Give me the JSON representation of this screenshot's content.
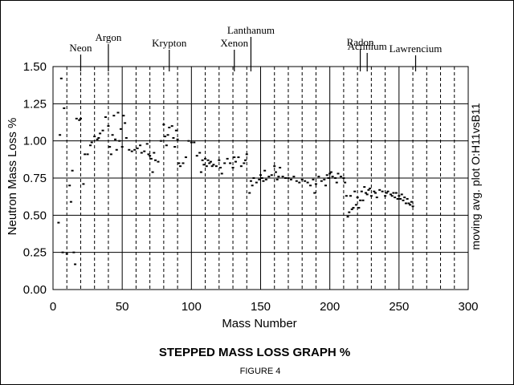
{
  "chart_data": {
    "type": "scatter",
    "title": "STEPPED MASS LOSS GRAPH  %",
    "caption": "FIGURE  4",
    "xlabel": "Mass Number",
    "ylabel": "Neutron Mass Loss %",
    "side_label": "moving avg. plot  O:H11vsB11",
    "xlim": [
      0,
      300
    ],
    "ylim": [
      0,
      1.5
    ],
    "xticks": [
      0,
      50,
      100,
      150,
      200,
      250,
      300
    ],
    "yticks": [
      0,
      0.25,
      0.5,
      0.75,
      1.0,
      1.25,
      1.5
    ],
    "xtick_labels": [
      "0",
      "50",
      "100",
      "150",
      "200",
      "250",
      "300"
    ],
    "ytick_labels": [
      "0.00",
      "0.25",
      "0.50",
      "0.75",
      "1.00",
      "1.25",
      "1.50"
    ],
    "grid": "horizontal solid at y ticks; vertical solid at x ticks; vertical dashed at every 10 mass units",
    "element_markers": [
      {
        "label": "Neon",
        "x": 20
      },
      {
        "label": "Argon",
        "x": 40
      },
      {
        "label": "Krypton",
        "x": 84
      },
      {
        "label": "Xenon",
        "x": 131
      },
      {
        "label": "Lanthanum",
        "x": 143
      },
      {
        "label": "Radon",
        "x": 222
      },
      {
        "label": "Actinium",
        "x": 227
      },
      {
        "label": "Lawrencium",
        "x": 262
      }
    ],
    "series": [
      {
        "points": [
          [
            4,
            0.45
          ],
          [
            5,
            1.04
          ],
          [
            6,
            1.42
          ],
          [
            7,
            0.25
          ],
          [
            8,
            1.22
          ],
          [
            10,
            0.24
          ],
          [
            12,
            0.7
          ],
          [
            13,
            0.59
          ],
          [
            14,
            0.8
          ],
          [
            15,
            0.25
          ],
          [
            16,
            0.17
          ],
          [
            17,
            1.15
          ],
          [
            19,
            1.14
          ],
          [
            20,
            1.15
          ],
          [
            22,
            0.71
          ],
          [
            23,
            0.91
          ],
          [
            25,
            0.91
          ],
          [
            27,
            0.97
          ],
          [
            28,
            0.99
          ],
          [
            30,
            1.03
          ],
          [
            32,
            1.01
          ],
          [
            33,
            1.02
          ],
          [
            34,
            1.05
          ],
          [
            36,
            1.07
          ],
          [
            38,
            1.16
          ],
          [
            40,
            1.1
          ],
          [
            41,
            0.96
          ],
          [
            42,
            0.91
          ],
          [
            43,
            1.04
          ],
          [
            44,
            1.17
          ],
          [
            45,
            1.01
          ],
          [
            46,
            0.94
          ],
          [
            47,
            1.19
          ],
          [
            48,
            1.0
          ],
          [
            49,
            1.08
          ],
          [
            50,
            0.96
          ],
          [
            51,
            1.17
          ],
          [
            52,
            1.12
          ],
          [
            53,
            1.02
          ],
          [
            55,
            0.94
          ],
          [
            57,
            0.93
          ],
          [
            59,
            0.94
          ],
          [
            61,
            0.95
          ],
          [
            63,
            0.97
          ],
          [
            64,
            0.92
          ],
          [
            66,
            0.93
          ],
          [
            68,
            0.98
          ],
          [
            69,
            0.91
          ],
          [
            70,
            0.9
          ],
          [
            71,
            0.88
          ],
          [
            72,
            0.79
          ],
          [
            73,
            0.92
          ],
          [
            74,
            0.87
          ],
          [
            76,
            0.86
          ],
          [
            78,
            1.0
          ],
          [
            80,
            1.11
          ],
          [
            81,
            1.03
          ],
          [
            82,
            0.97
          ],
          [
            83,
            1.04
          ],
          [
            84,
            1.09
          ],
          [
            86,
            1.1
          ],
          [
            87,
            1.02
          ],
          [
            88,
            0.96
          ],
          [
            89,
            1.07
          ],
          [
            90,
            1.01
          ],
          [
            91,
            0.85
          ],
          [
            92,
            0.83
          ],
          [
            94,
            0.85
          ],
          [
            96,
            0.89
          ],
          [
            98,
            1.0
          ],
          [
            100,
            0.99
          ],
          [
            102,
            0.99
          ],
          [
            104,
            0.9
          ],
          [
            106,
            0.92
          ],
          [
            107,
            0.79
          ],
          [
            108,
            0.87
          ],
          [
            109,
            0.84
          ],
          [
            110,
            0.88
          ],
          [
            111,
            0.83
          ],
          [
            112,
            0.87
          ],
          [
            113,
            0.85
          ],
          [
            114,
            0.86
          ],
          [
            115,
            0.83
          ],
          [
            116,
            0.84
          ],
          [
            118,
            0.83
          ],
          [
            120,
            0.87
          ],
          [
            121,
            0.82
          ],
          [
            122,
            0.78
          ],
          [
            124,
            0.85
          ],
          [
            126,
            0.88
          ],
          [
            128,
            0.85
          ],
          [
            130,
            0.82
          ],
          [
            131,
            0.89
          ],
          [
            132,
            0.86
          ],
          [
            134,
            0.89
          ],
          [
            136,
            0.83
          ],
          [
            138,
            0.85
          ],
          [
            139,
            0.87
          ],
          [
            140,
            0.91
          ],
          [
            142,
            0.65
          ],
          [
            143,
            0.73
          ],
          [
            144,
            0.7
          ],
          [
            145,
            0.75
          ],
          [
            147,
            0.72
          ],
          [
            149,
            0.74
          ],
          [
            150,
            0.77
          ],
          [
            151,
            0.75
          ],
          [
            152,
            0.73
          ],
          [
            153,
            0.8
          ],
          [
            154,
            0.74
          ],
          [
            156,
            0.76
          ],
          [
            158,
            0.77
          ],
          [
            160,
            0.83
          ],
          [
            161,
            0.79
          ],
          [
            162,
            0.74
          ],
          [
            163,
            0.76
          ],
          [
            164,
            0.82
          ],
          [
            166,
            0.76
          ],
          [
            168,
            0.75
          ],
          [
            170,
            0.75
          ],
          [
            172,
            0.74
          ],
          [
            174,
            0.76
          ],
          [
            176,
            0.73
          ],
          [
            178,
            0.72
          ],
          [
            180,
            0.74
          ],
          [
            182,
            0.73
          ],
          [
            184,
            0.72
          ],
          [
            186,
            0.7
          ],
          [
            188,
            0.74
          ],
          [
            189,
            0.65
          ],
          [
            190,
            0.71
          ],
          [
            192,
            0.76
          ],
          [
            194,
            0.73
          ],
          [
            196,
            0.74
          ],
          [
            197,
            0.7
          ],
          [
            198,
            0.77
          ],
          [
            199,
            0.75
          ],
          [
            200,
            0.78
          ],
          [
            201,
            0.79
          ],
          [
            202,
            0.76
          ],
          [
            204,
            0.75
          ],
          [
            205,
            0.72
          ],
          [
            206,
            0.78
          ],
          [
            208,
            0.76
          ],
          [
            210,
            0.75
          ],
          [
            211,
            0.72
          ],
          [
            212,
            0.63
          ],
          [
            213,
            0.49
          ],
          [
            214,
            0.52
          ],
          [
            215,
            0.63
          ],
          [
            216,
            0.54
          ],
          [
            217,
            0.55
          ],
          [
            218,
            0.66
          ],
          [
            219,
            0.57
          ],
          [
            220,
            0.62
          ],
          [
            221,
            0.55
          ],
          [
            222,
            0.6
          ],
          [
            223,
            0.66
          ],
          [
            224,
            0.6
          ],
          [
            225,
            0.69
          ],
          [
            226,
            0.65
          ],
          [
            227,
            0.64
          ],
          [
            228,
            0.67
          ],
          [
            229,
            0.68
          ],
          [
            230,
            0.63
          ],
          [
            232,
            0.66
          ],
          [
            233,
            0.65
          ],
          [
            234,
            0.62
          ],
          [
            236,
            0.67
          ],
          [
            238,
            0.66
          ],
          [
            240,
            0.63
          ],
          [
            241,
            0.65
          ],
          [
            242,
            0.66
          ],
          [
            244,
            0.64
          ],
          [
            245,
            0.63
          ],
          [
            246,
            0.65
          ],
          [
            247,
            0.62
          ],
          [
            248,
            0.65
          ],
          [
            249,
            0.61
          ],
          [
            250,
            0.63
          ],
          [
            251,
            0.61
          ],
          [
            252,
            0.64
          ],
          [
            253,
            0.6
          ],
          [
            254,
            0.62
          ],
          [
            255,
            0.58
          ],
          [
            256,
            0.61
          ],
          [
            257,
            0.58
          ],
          [
            258,
            0.57
          ],
          [
            259,
            0.59
          ],
          [
            260,
            0.56
          ]
        ]
      }
    ]
  }
}
